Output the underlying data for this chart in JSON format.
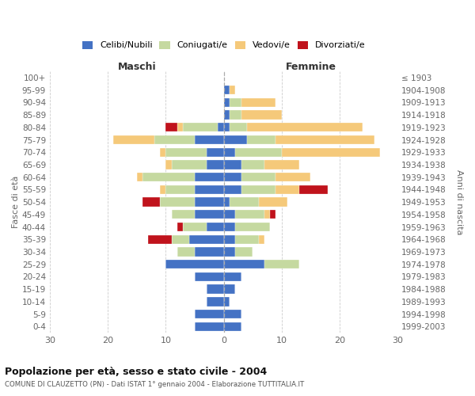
{
  "age_groups": [
    "0-4",
    "5-9",
    "10-14",
    "15-19",
    "20-24",
    "25-29",
    "30-34",
    "35-39",
    "40-44",
    "45-49",
    "50-54",
    "55-59",
    "60-64",
    "65-69",
    "70-74",
    "75-79",
    "80-84",
    "85-89",
    "90-94",
    "95-99",
    "100+"
  ],
  "birth_years": [
    "1999-2003",
    "1994-1998",
    "1989-1993",
    "1984-1988",
    "1979-1983",
    "1974-1978",
    "1969-1973",
    "1964-1968",
    "1959-1963",
    "1954-1958",
    "1949-1953",
    "1944-1948",
    "1939-1943",
    "1934-1938",
    "1929-1933",
    "1924-1928",
    "1919-1923",
    "1914-1918",
    "1909-1913",
    "1904-1908",
    "≤ 1903"
  ],
  "colors": {
    "celibi": "#4472C4",
    "coniugati": "#C5D9A0",
    "vedovi": "#F5C97A",
    "divorziati": "#C0131C"
  },
  "maschi": {
    "celibi": [
      5,
      5,
      3,
      3,
      5,
      10,
      5,
      6,
      3,
      5,
      5,
      5,
      5,
      3,
      3,
      5,
      1,
      0,
      0,
      0,
      0
    ],
    "coniugati": [
      0,
      0,
      0,
      0,
      0,
      0,
      3,
      3,
      4,
      4,
      6,
      5,
      9,
      6,
      7,
      7,
      6,
      0,
      0,
      0,
      0
    ],
    "vedovi": [
      0,
      0,
      0,
      0,
      0,
      0,
      0,
      0,
      0,
      0,
      0,
      1,
      1,
      1,
      1,
      7,
      1,
      0,
      0,
      0,
      0
    ],
    "divorziati": [
      0,
      0,
      0,
      0,
      0,
      0,
      0,
      4,
      1,
      0,
      3,
      0,
      0,
      0,
      0,
      0,
      2,
      0,
      0,
      0,
      0
    ]
  },
  "femmine": {
    "celibi": [
      3,
      3,
      1,
      2,
      3,
      7,
      2,
      2,
      2,
      2,
      1,
      3,
      3,
      3,
      2,
      4,
      1,
      1,
      1,
      1,
      0
    ],
    "coniugati": [
      0,
      0,
      0,
      0,
      0,
      6,
      3,
      4,
      6,
      5,
      5,
      6,
      6,
      4,
      8,
      5,
      3,
      2,
      2,
      0,
      0
    ],
    "vedovi": [
      0,
      0,
      0,
      0,
      0,
      0,
      0,
      1,
      0,
      1,
      5,
      4,
      6,
      6,
      17,
      17,
      20,
      7,
      6,
      1,
      0
    ],
    "divorziati": [
      0,
      0,
      0,
      0,
      0,
      0,
      0,
      0,
      0,
      1,
      0,
      5,
      0,
      0,
      0,
      0,
      0,
      0,
      0,
      0,
      0
    ]
  },
  "title": "Popolazione per età, sesso e stato civile - 2004",
  "subtitle": "COMUNE DI CLAUZETTO (PN) - Dati ISTAT 1° gennaio 2004 - Elaborazione TUTTITALIA.IT",
  "xlabel_left": "Maschi",
  "xlabel_right": "Femmine",
  "ylabel_left": "Fasce di età",
  "ylabel_right": "Anni di nascita",
  "xlim": 30,
  "background_color": "#ffffff",
  "grid_color": "#cccccc"
}
